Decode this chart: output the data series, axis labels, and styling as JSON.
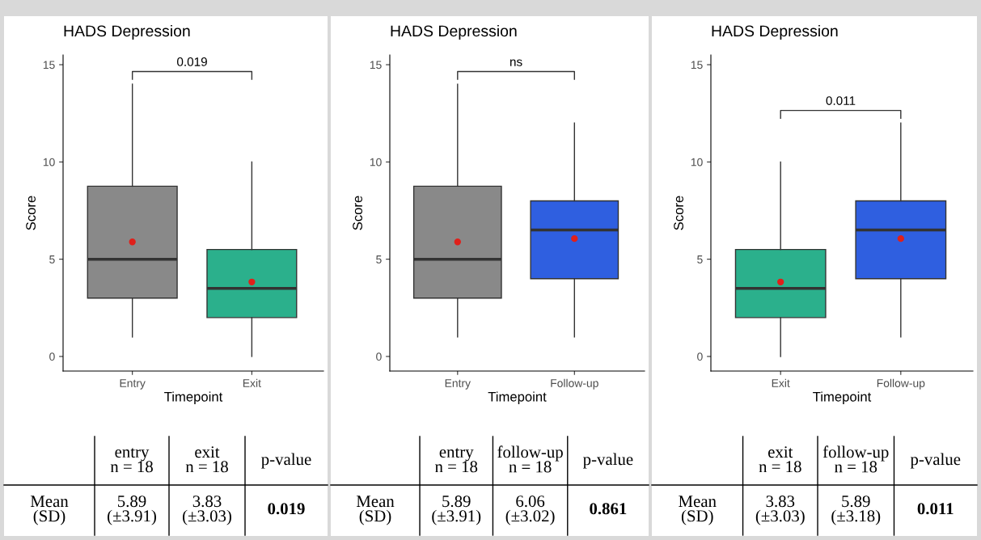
{
  "chart_data": [
    {
      "type": "box",
      "title": "HADS Depression",
      "xlabel": "Timepoint",
      "ylabel": "Score",
      "categories": [
        "Entry",
        "Exit"
      ],
      "colors": [
        "#898989",
        "#2bb08c"
      ],
      "boxes": [
        {
          "low": 1,
          "q1": 3,
          "median": 5,
          "q3": 8.75,
          "high": 14,
          "mean": 5.89
        },
        {
          "low": 0,
          "q1": 2,
          "median": 3.5,
          "q3": 5.5,
          "high": 10,
          "mean": 3.83
        }
      ],
      "ylim": [
        -0.75,
        15.5
      ],
      "yticks": [
        0,
        5,
        10,
        15
      ],
      "grid": false,
      "annotations": [
        "0.019",
        "entry\nn = 18",
        "exit\nn = 18",
        "p-value",
        "Mean\n(SD)",
        "5.89\n(±3.91)",
        "3.83\n(±3.03)",
        "0.019"
      ]
    },
    {
      "type": "box",
      "title": "HADS Depression",
      "xlabel": "Timepoint",
      "ylabel": "Score",
      "categories": [
        "Entry",
        "Follow-up"
      ],
      "colors": [
        "#898989",
        "#2f5fe0"
      ],
      "boxes": [
        {
          "low": 1,
          "q1": 3,
          "median": 5,
          "q3": 8.75,
          "high": 14,
          "mean": 5.89
        },
        {
          "low": 1,
          "q1": 4,
          "median": 6.5,
          "q3": 8,
          "high": 12,
          "mean": 6.06
        }
      ],
      "ylim": [
        -0.75,
        15.5
      ],
      "yticks": [
        0,
        5,
        10,
        15
      ],
      "grid": false,
      "annotations": [
        "ns",
        "entry\nn = 18",
        "follow-up\nn = 18",
        "p-value",
        "Mean\n(SD)",
        "5.89\n(±3.91)",
        "6.06\n(±3.02)",
        "0.861"
      ]
    },
    {
      "type": "box",
      "title": "HADS Depression",
      "xlabel": "Timepoint",
      "ylabel": "Score",
      "categories": [
        "Exit",
        "Follow-up"
      ],
      "colors": [
        "#2bb08c",
        "#2f5fe0"
      ],
      "boxes": [
        {
          "low": 0,
          "q1": 2,
          "median": 3.5,
          "q3": 5.5,
          "high": 10,
          "mean": 3.83
        },
        {
          "low": 1,
          "q1": 4,
          "median": 6.5,
          "q3": 8,
          "high": 12,
          "mean": 6.06
        }
      ],
      "ylim": [
        -0.75,
        15.5
      ],
      "yticks": [
        0,
        5,
        10,
        15
      ],
      "grid": false,
      "annotations": [
        "0.011",
        "exit\nn = 18",
        "follow-up\nn = 18",
        "p-value",
        "Mean\n(SD)",
        "3.83\n(±3.03)",
        "5.89\n(±3.18)",
        "0.011"
      ]
    }
  ]
}
